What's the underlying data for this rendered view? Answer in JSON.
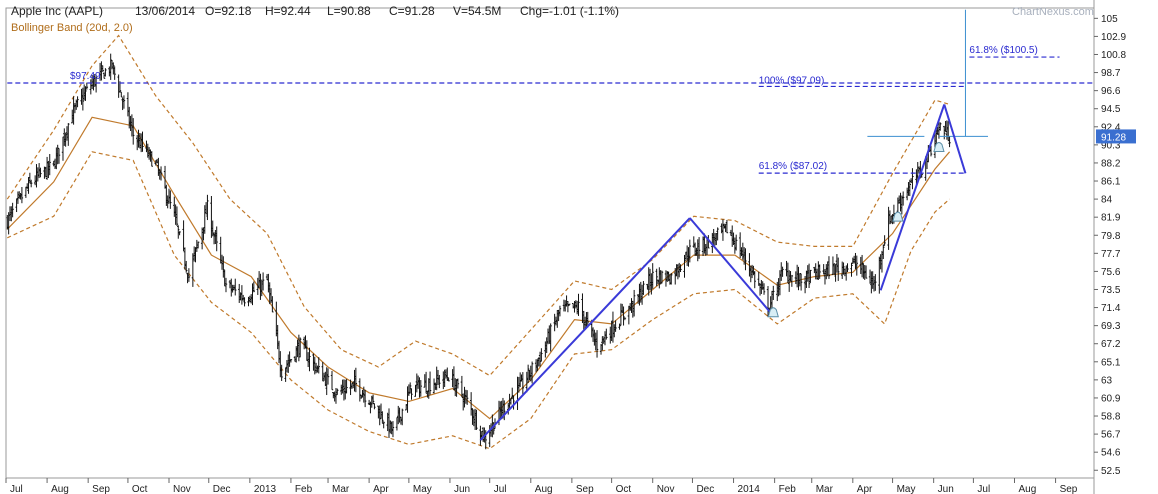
{
  "header": {
    "title": "Apple Inc (AAPL)",
    "date": "13/06/2014",
    "open": "O=92.18",
    "high": "H=92.44",
    "low": "L=90.88",
    "close": "C=91.28",
    "volume": "V=54.5M",
    "change": "Chg=-1.01 (-1.1%)",
    "indicator": "Bollinger Band (20d, 2.0)",
    "brand": "ChartNexus.com"
  },
  "colors": {
    "candles": "#111111",
    "band": "#c07a2c",
    "trend": "#3a3ad8",
    "levels": "#2a2ad0",
    "price_badge": "#3a6fd0",
    "grid": "#d9d9d9"
  },
  "chart_data": {
    "type": "line",
    "title": "Apple Inc (AAPL)",
    "subtitle": "Bollinger Band (20d, 2.0)",
    "xlabel": "",
    "ylabel": "",
    "x_ticks": [
      "Jul",
      "Aug",
      "Sep",
      "Oct",
      "Nov",
      "Dec",
      "2013",
      "Feb",
      "Mar",
      "Apr",
      "May",
      "Jun",
      "Jul",
      "Aug",
      "Sep",
      "Oct",
      "Nov",
      "Dec",
      "2014",
      "Feb",
      "Mar",
      "Apr",
      "May",
      "Jun",
      "Jul",
      "Aug",
      "Sep"
    ],
    "y_ticks": [
      "105",
      "102.9",
      "100.8",
      "98.7",
      "96.6",
      "94.5",
      "92.4",
      "90.3",
      "88.2",
      "86.1",
      "84",
      "81.9",
      "79.8",
      "77.7",
      "75.6",
      "73.5",
      "71.4",
      "69.3",
      "67.2",
      "65.1",
      "63",
      "60.9",
      "58.8",
      "56.7",
      "54.6",
      "52.5"
    ],
    "ylim": [
      51.6,
      106.2
    ],
    "y_axis_position": "right",
    "grid": false,
    "legend": "top-left",
    "last_price": "91.28",
    "series": [
      {
        "kind": "price",
        "x": [
          "2012-07-02",
          "2012-07-20",
          "2012-08-06",
          "2012-08-20",
          "2012-09-04",
          "2012-09-19",
          "2012-10-05",
          "2012-10-22",
          "2012-11-05",
          "2012-11-16",
          "2012-11-30",
          "2012-12-14",
          "2012-12-28",
          "2013-01-14",
          "2013-01-25",
          "2013-02-08",
          "2013-02-22",
          "2013-03-08",
          "2013-03-22",
          "2013-04-05",
          "2013-04-19",
          "2013-05-03",
          "2013-05-17",
          "2013-05-31",
          "2013-06-14",
          "2013-06-27",
          "2013-07-12",
          "2013-07-26",
          "2013-08-09",
          "2013-08-23",
          "2013-09-06",
          "2013-09-20",
          "2013-10-04",
          "2013-10-18",
          "2013-11-01",
          "2013-11-15",
          "2013-11-29",
          "2013-12-13",
          "2013-12-27",
          "2014-01-10",
          "2014-01-28",
          "2014-02-07",
          "2014-02-21",
          "2014-03-07",
          "2014-03-21",
          "2014-04-04",
          "2014-04-17",
          "2014-04-28",
          "2014-05-09",
          "2014-05-23",
          "2014-06-06",
          "2014-06-13"
        ],
        "y": [
          81.5,
          86.0,
          88.0,
          94.0,
          97.5,
          99.5,
          91.5,
          88.0,
          82.0,
          75.0,
          83.0,
          74.0,
          72.5,
          74.5,
          64.0,
          67.0,
          64.0,
          61.5,
          62.5,
          60.0,
          57.0,
          62.0,
          62.5,
          63.5,
          60.5,
          56.2,
          60.0,
          62.5,
          66.0,
          71.0,
          71.5,
          67.0,
          69.5,
          72.0,
          75.0,
          75.0,
          78.0,
          79.0,
          80.5,
          77.0,
          71.5,
          75.5,
          74.5,
          75.5,
          76.0,
          76.5,
          74.0,
          81.5,
          84.5,
          87.5,
          92.5,
          91.28
        ]
      },
      {
        "kind": "band-middle",
        "x": [
          "2012-07-02",
          "2012-08-06",
          "2012-09-04",
          "2012-10-05",
          "2012-11-05",
          "2012-12-03",
          "2013-01-02",
          "2013-02-01",
          "2013-03-01",
          "2013-04-01",
          "2013-05-01",
          "2013-06-03",
          "2013-07-01",
          "2013-08-01",
          "2013-09-03",
          "2013-10-01",
          "2013-11-01",
          "2013-12-02",
          "2014-01-02",
          "2014-02-03",
          "2014-03-03",
          "2014-04-01",
          "2014-05-01",
          "2014-06-02",
          "2014-06-13"
        ],
        "y": [
          80.5,
          86.0,
          93.5,
          92.5,
          84.5,
          77.5,
          75.0,
          68.5,
          64.5,
          61.5,
          60.5,
          62.0,
          58.5,
          63.0,
          70.0,
          69.5,
          73.5,
          77.5,
          77.5,
          74.0,
          75.0,
          75.5,
          80.0,
          87.5,
          89.5
        ]
      },
      {
        "kind": "band-upper",
        "x": [
          "2012-07-02",
          "2012-08-06",
          "2012-09-04",
          "2012-09-24",
          "2012-10-22",
          "2012-11-19",
          "2012-12-17",
          "2013-01-14",
          "2013-02-11",
          "2013-03-11",
          "2013-04-08",
          "2013-05-06",
          "2013-06-03",
          "2013-07-01",
          "2013-08-05",
          "2013-09-03",
          "2013-10-01",
          "2013-11-01",
          "2013-12-02",
          "2014-01-02",
          "2014-02-03",
          "2014-03-03",
          "2014-04-01",
          "2014-05-01",
          "2014-06-02",
          "2014-06-13"
        ],
        "y": [
          84.0,
          92.0,
          99.5,
          103.0,
          96.0,
          90.5,
          84.0,
          80.0,
          71.5,
          66.5,
          64.5,
          67.5,
          66.0,
          63.5,
          69.5,
          74.5,
          73.5,
          77.0,
          82.0,
          81.5,
          79.0,
          78.5,
          78.5,
          87.0,
          95.5,
          95.0
        ]
      },
      {
        "kind": "band-lower",
        "x": [
          "2012-07-02",
          "2012-08-06",
          "2012-09-04",
          "2012-10-05",
          "2012-11-05",
          "2012-12-03",
          "2013-01-02",
          "2013-02-01",
          "2013-03-01",
          "2013-04-01",
          "2013-05-01",
          "2013-06-03",
          "2013-07-01",
          "2013-08-01",
          "2013-09-03",
          "2013-10-01",
          "2013-11-01",
          "2013-12-02",
          "2014-01-02",
          "2014-02-03",
          "2014-03-03",
          "2014-04-01",
          "2014-04-25",
          "2014-05-15",
          "2014-06-02",
          "2014-06-13"
        ],
        "y": [
          79.5,
          82.0,
          89.5,
          88.5,
          77.5,
          72.0,
          68.5,
          63.0,
          59.5,
          57.0,
          55.5,
          56.5,
          55.0,
          58.5,
          66.0,
          66.5,
          70.0,
          73.0,
          73.5,
          69.5,
          72.5,
          73.0,
          69.5,
          78.0,
          82.5,
          84.0
        ]
      }
    ],
    "trend_lines": [
      {
        "x": [
          "2013-06-24",
          "2013-11-29"
        ],
        "y": [
          56.0,
          81.8
        ]
      },
      {
        "x": [
          "2013-11-29",
          "2014-01-29"
        ],
        "y": [
          81.8,
          70.8
        ]
      },
      {
        "x": [
          "2014-04-22",
          "2014-06-09"
        ],
        "y": [
          73.4,
          95.0
        ]
      },
      {
        "x": [
          "2014-06-09",
          "2014-06-25"
        ],
        "y": [
          95.0,
          87.0
        ]
      }
    ],
    "levels": [
      {
        "y": 97.49,
        "label": "$97.49",
        "x_from": "2012-07-02",
        "x_to": "2014-09-30"
      },
      {
        "y": 97.09,
        "label": "100%  ($97.09)",
        "x_from": "2014-01-20",
        "x_to": "2014-06-25"
      },
      {
        "y": 87.02,
        "label": "61.8%  ($87.02)",
        "x_from": "2014-01-20",
        "x_to": "2014-06-25"
      },
      {
        "y": 100.5,
        "label": "61.8%  ($100.5)",
        "x_from": "2014-06-28",
        "x_to": "2014-09-04"
      }
    ],
    "markers": [
      {
        "x": "2014-01-31",
        "y": 70.8
      },
      {
        "x": "2014-05-05",
        "y": 81.9
      },
      {
        "x": "2014-06-05",
        "y": 90.0
      }
    ]
  }
}
